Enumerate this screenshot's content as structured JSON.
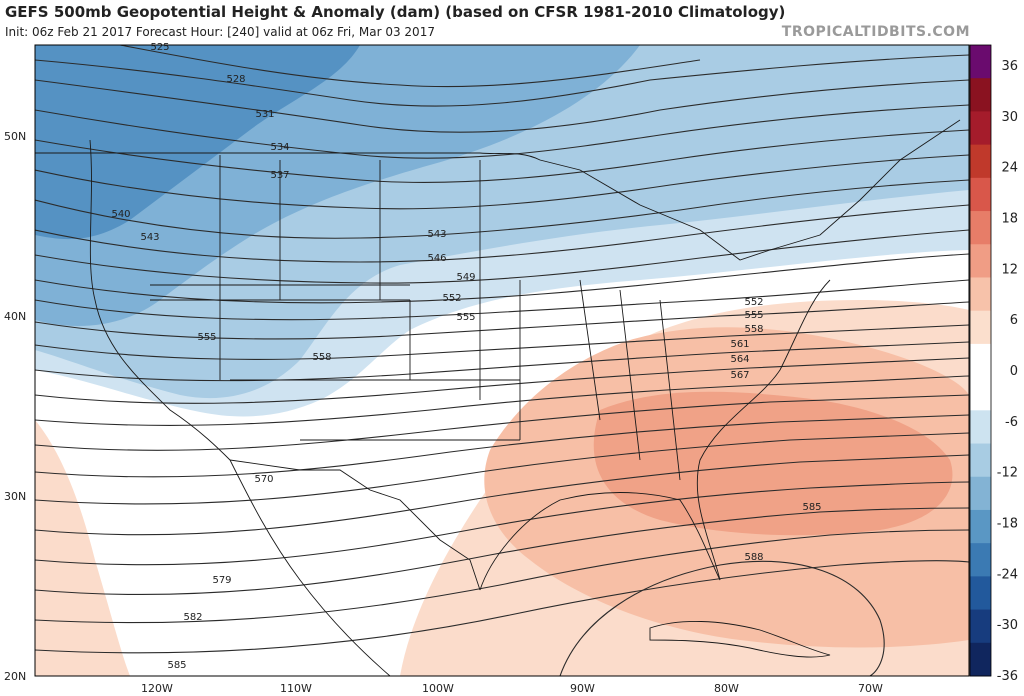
{
  "header": {
    "title": "GEFS 500mb Geopotential Height & Anomaly (dam) (based on CFSR 1981-2010 Climatology)",
    "subtitle": "Init: 06z Feb 21 2017   Forecast Hour: [240]   valid at 06z Fri, Mar 03 2017",
    "brand": "TROPICALTIDBITS.COM"
  },
  "map": {
    "lat_labels": [
      "50N",
      "40N",
      "30N",
      "20N"
    ],
    "lon_labels": [
      "120W",
      "110W",
      "100W",
      "90W",
      "80W",
      "70W"
    ],
    "contour_labels": [
      "525",
      "528",
      "531",
      "534",
      "537",
      "540",
      "543",
      "543",
      "546",
      "549",
      "552",
      "552",
      "555",
      "555",
      "555",
      "558",
      "558",
      "561",
      "564",
      "567",
      "570",
      "579",
      "582",
      "585",
      "585",
      "588"
    ]
  },
  "colorbar": {
    "ticks": [
      "36",
      "30",
      "24",
      "18",
      "12",
      "6",
      "0",
      "-6",
      "-12",
      "-18",
      "-24",
      "-30",
      "-36"
    ],
    "colors": [
      "#6a0b6e",
      "#8a1220",
      "#a51c2b",
      "#c0392b",
      "#d9574a",
      "#e77d68",
      "#f09d85",
      "#f7c2aa",
      "#fbdfcd",
      "#ffffff",
      "#ffffff",
      "#cde3f0",
      "#a8cce3",
      "#83b3d4",
      "#5a97c4",
      "#3b7ab3",
      "#22599c",
      "#173c7e",
      "#10265e"
    ]
  }
}
